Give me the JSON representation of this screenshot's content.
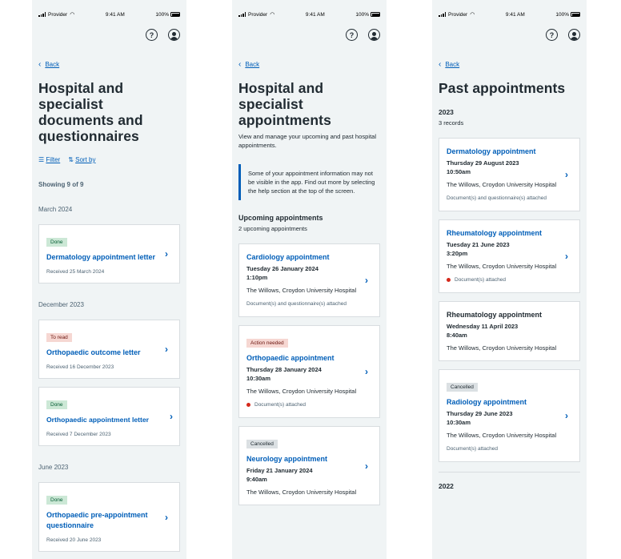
{
  "status": {
    "carrier": "Provider",
    "time": "9:41 AM",
    "battery": "100%"
  },
  "back_label": "Back",
  "screen1": {
    "title": "Hospital and specialist documents and questionnaires",
    "filter_label": "Filter",
    "sort_label": "Sort by",
    "showing": "Showing 9 of 9",
    "groups": [
      {
        "month": "March 2024",
        "items": [
          {
            "tag": "Done",
            "title": "Dermatology appointment letter",
            "received": "Received 25 March 2024"
          }
        ]
      },
      {
        "month": "December 2023",
        "items": [
          {
            "tag": "To read",
            "title": "Orthopaedic outcome letter",
            "received": "Received 16 December 2023"
          },
          {
            "tag": "Done",
            "title": "Orthopaedic appointment letter",
            "received": "Received 7 December 2023"
          }
        ]
      },
      {
        "month": "June 2023",
        "items": [
          {
            "tag": "Done",
            "title": "Orthopaedic pre-appointment questionnaire",
            "received": "Received 20 June 2023"
          }
        ]
      }
    ]
  },
  "screen2": {
    "title": "Hospital and specialist appointments",
    "intro": "View and manage your upcoming and past hospital appointments.",
    "inset": "Some of your appointment information may not be visible in the app. Find out more by selecting the help section at the top of the screen.",
    "upcoming_heading": "Upcoming appointments",
    "upcoming_count": "2 upcoming appointments",
    "cards": [
      {
        "tag": "",
        "title": "Cardiology appointment",
        "date": "Tuesday 26 January 2024",
        "time": "1:10pm",
        "location": "The Willows, Croydon University Hospital",
        "note": "Document(s) and questionnaire(s) attached",
        "dot": false
      },
      {
        "tag": "Action needed",
        "title": "Orthopaedic appointment",
        "date": "Thursday 28 January 2024",
        "time": "10:30am",
        "location": "The Willows, Croydon University Hospital",
        "note": "Document(s) attached",
        "dot": true
      },
      {
        "tag": "Cancelled",
        "title": "Neurology appointment",
        "date": "Friday 21 January 2024",
        "time": "9:40am",
        "location": "The Willows, Croydon University Hospital",
        "note": "",
        "dot": false
      }
    ]
  },
  "screen3": {
    "title": "Past appointments",
    "year": "2023",
    "records": "3 records",
    "cards": [
      {
        "tag": "",
        "title": "Dermatology appointment",
        "date": "Thursday 29 August 2023",
        "time": "10:50am",
        "location": "The Willows, Croydon University Hospital",
        "note": "Document(s) and questionnaire(s) attached",
        "dot": false
      },
      {
        "tag": "",
        "title": "Rheumatology appointment",
        "date": "Tuesday 21 June 2023",
        "time": "3:20pm",
        "location": "The Willows, Croydon University Hospital",
        "note": "Document(s) attached",
        "dot": true
      },
      {
        "tag": "",
        "title": "Rheumatology appointment",
        "date": "Wednesday 11 April 2023",
        "time": "8:40am",
        "location": "The Willows, Croydon University Hospital",
        "note": "",
        "dot": false
      },
      {
        "tag": "Cancelled",
        "title": "Radiology appointment",
        "date": "Thursday 29 June 2023",
        "time": "10:30am",
        "location": "The Willows, Croydon University Hospital",
        "note": "Document(s) attached",
        "dot": false
      }
    ],
    "next_year": "2022"
  }
}
